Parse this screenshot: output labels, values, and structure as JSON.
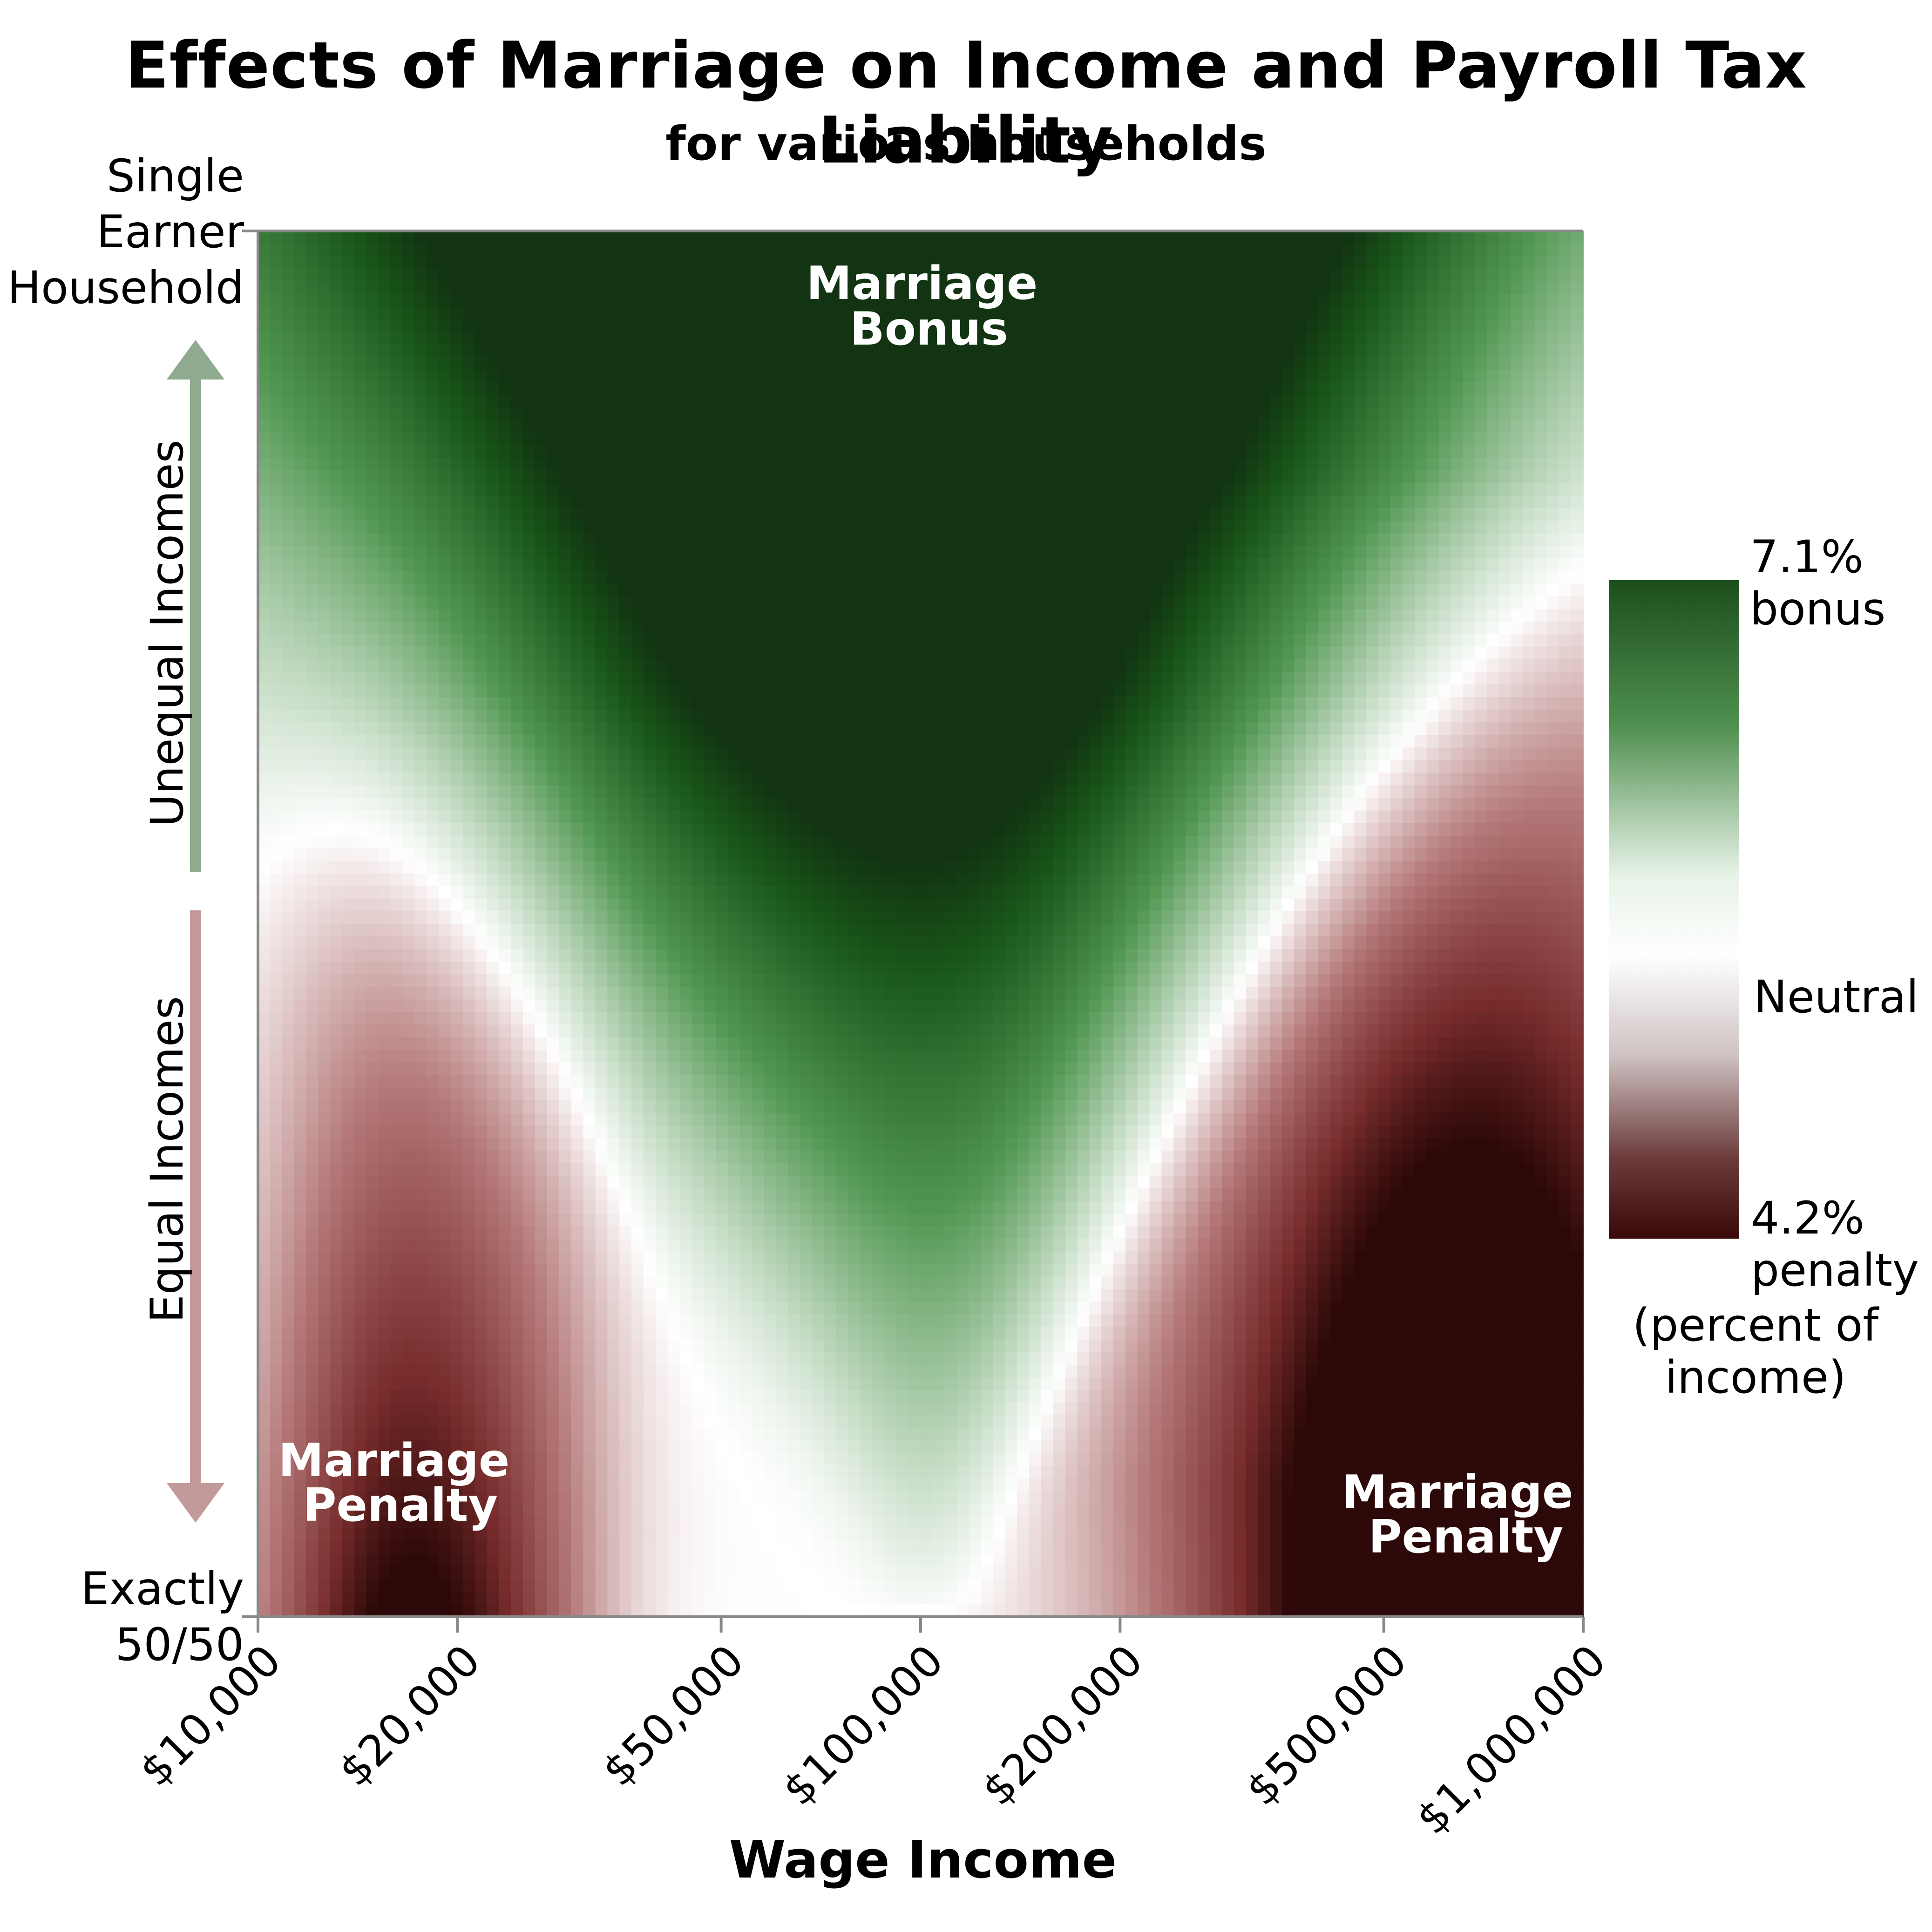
{
  "chart_data": {
    "type": "heatmap",
    "title": "Effects of Marriage on Income and Payroll Tax Liability",
    "subtitle": "for various households",
    "xlabel": "Wage Income",
    "x_scale": "log",
    "xlim": [
      10000,
      1000000
    ],
    "x_ticks": [
      "$10,000",
      "$20,000",
      "$50,000",
      "$100,000",
      "$200,000",
      "$500,000",
      "$1,000,000"
    ],
    "x_tick_values": [
      10000,
      20000,
      50000,
      100000,
      200000,
      500000,
      1000000
    ],
    "y_top_label": "Single Earner Household",
    "y_top_lines": [
      "Single",
      "Earner",
      "Household"
    ],
    "y_bottom_lines": [
      "Exactly",
      "50/50"
    ],
    "y_arrow_up_label": "Unequal Incomes",
    "y_arrow_down_label": "Equal Incomes",
    "annotations": [
      {
        "lines": [
          "Marriage",
          "Bonus"
        ]
      },
      {
        "lines": [
          "Marriage",
          "Penalty"
        ]
      },
      {
        "lines": [
          "Marriage",
          "Penalty"
        ]
      }
    ],
    "colorbar": {
      "max_label_lines": [
        "7.1%",
        "bonus"
      ],
      "mid_label": "Neutral",
      "min_label_lines": [
        "4.2%",
        "penalty"
      ],
      "unit_lines": [
        "(percent of",
        "income)"
      ],
      "max_value": 7.1,
      "min_value": -4.2
    },
    "colors": {
      "bonus_dark": "#1c4e1c",
      "bonus": "#256e25",
      "neutral": "#ffffff",
      "penalty": "#7a2e2e",
      "penalty_dark": "#3a0a0a",
      "arrow_up": "#8faa8f",
      "arrow_down": "#c39a9a",
      "axis": "#888888"
    },
    "grid": false
  }
}
